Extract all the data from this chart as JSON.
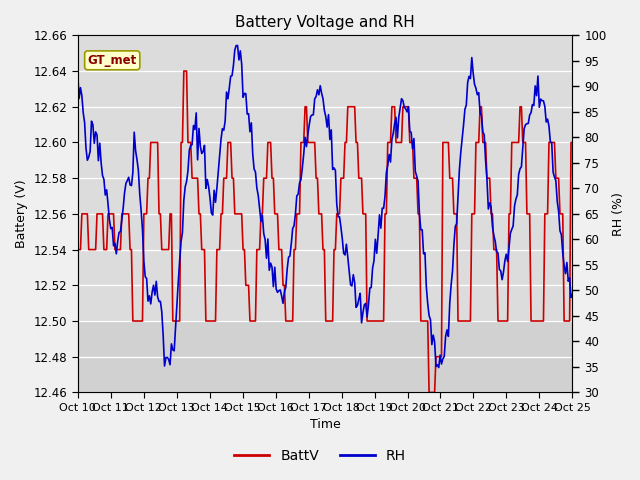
{
  "title": "Battery Voltage and RH",
  "xlabel": "Time",
  "ylabel_left": "Battery (V)",
  "ylabel_right": "RH (%)",
  "ylim_left": [
    12.46,
    12.66
  ],
  "ylim_right": [
    30,
    100
  ],
  "yticks_left": [
    12.46,
    12.48,
    12.5,
    12.52,
    12.54,
    12.56,
    12.58,
    12.6,
    12.62,
    12.64,
    12.66
  ],
  "yticks_right": [
    30,
    35,
    40,
    45,
    50,
    55,
    60,
    65,
    70,
    75,
    80,
    85,
    90,
    95,
    100
  ],
  "xtick_labels": [
    "Oct 10",
    "Oct 11",
    "Oct 12",
    "Oct 13",
    "Oct 14",
    "Oct 15",
    "Oct 16",
    "Oct 17",
    "Oct 18",
    "Oct 19",
    "Oct 20",
    "Oct 21",
    "Oct 22",
    "Oct 23",
    "Oct 24",
    "Oct 25"
  ],
  "annotation_label": "GT_met",
  "batt_color": "#cc0000",
  "rh_color": "#0000cc",
  "plot_bg_color": "#dcdcdc",
  "legend_batt": "BattV",
  "legend_rh": "RH",
  "line_width": 1.2,
  "title_fontsize": 11,
  "label_fontsize": 9,
  "tick_fontsize": 8.5
}
